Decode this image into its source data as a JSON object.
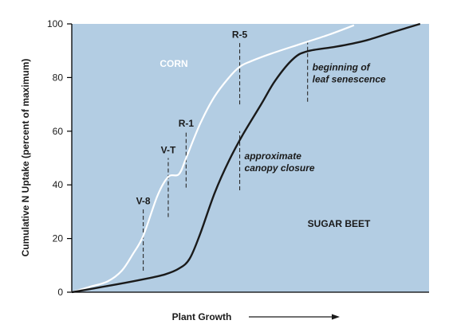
{
  "chart_data": {
    "type": "line",
    "title": "",
    "xlabel": "Plant Growth",
    "ylabel": "Cumulative N Uptake (percent of maximum)",
    "xlim": [
      0,
      100
    ],
    "ylim": [
      0,
      100
    ],
    "y_ticks": [
      "0",
      "20",
      "40",
      "60",
      "80",
      "100"
    ],
    "grid": false,
    "background_color": "#b3cde3",
    "series": [
      {
        "name": "CORN",
        "color": "#ffffff",
        "x": [
          0,
          5,
          10,
          14,
          17,
          20,
          24,
          27,
          30,
          32,
          36,
          40,
          44,
          47,
          50,
          56,
          64,
          72,
          79
        ],
        "y": [
          0,
          2,
          4,
          8,
          14,
          21,
          36,
          43,
          44,
          50,
          63,
          73,
          80,
          84,
          86,
          89,
          92.5,
          96,
          99.5
        ]
      },
      {
        "name": "SUGAR BEET",
        "color": "#1a1a1a",
        "x": [
          0,
          10,
          20,
          26,
          30,
          33,
          36,
          40,
          44,
          48,
          53,
          57,
          62,
          66,
          74,
          82,
          90,
          97.5
        ],
        "y": [
          0,
          2.3,
          4.8,
          6.6,
          8.8,
          12.5,
          22,
          37,
          49,
          59,
          70,
          79,
          87,
          89.8,
          91.5,
          93.7,
          97,
          100
        ]
      }
    ],
    "annotations": {
      "stage_markers": [
        {
          "label": "V-8",
          "x": 20,
          "y_from": 8,
          "y_to": 31
        },
        {
          "label": "V-T",
          "x": 27,
          "y_from": 28,
          "y_to": 50
        },
        {
          "label": "R-1",
          "x": 32,
          "y_from": 39,
          "y_to": 60
        },
        {
          "label": "R-5",
          "x": 47,
          "y_from": 70,
          "y_to": 93
        }
      ],
      "event_markers": [
        {
          "line1": "approximate",
          "line2": "canopy closure",
          "x": 47,
          "y_from": 38,
          "y_to": 60
        },
        {
          "line1": "beginning of",
          "line2": "leaf senescence",
          "x": 66,
          "y_from": 71,
          "y_to": 93
        }
      ],
      "series_labels": [
        {
          "text": "CORN"
        },
        {
          "text": "SUGAR BEET"
        }
      ]
    }
  }
}
